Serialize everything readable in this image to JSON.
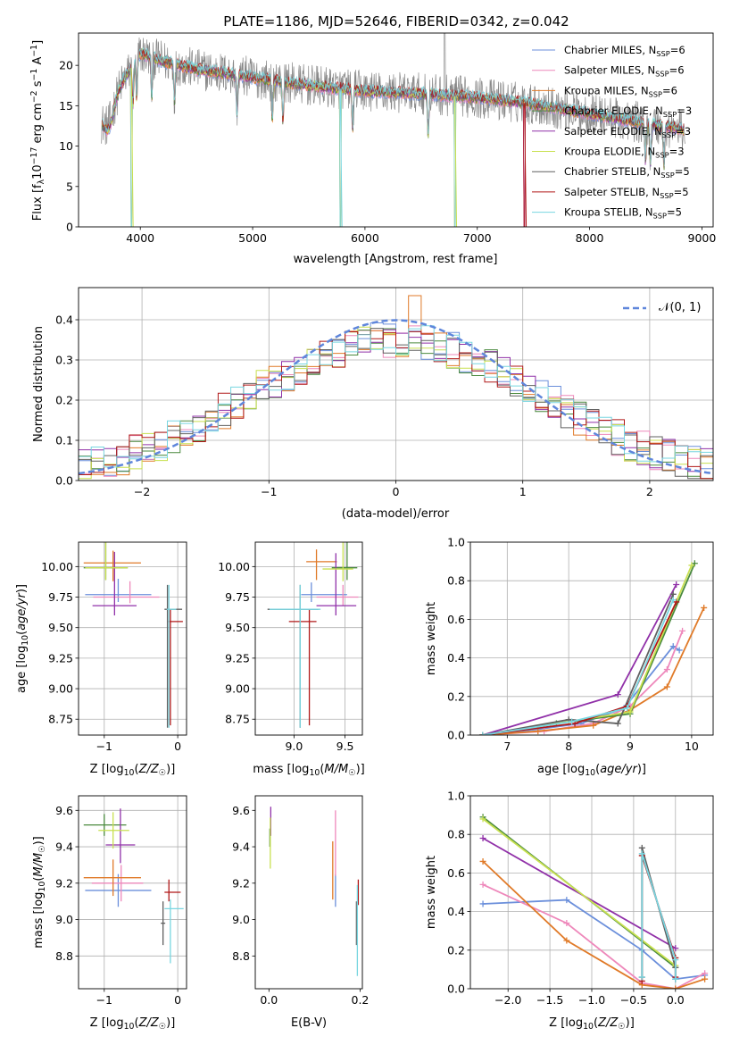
{
  "title": "PLATE=1186, MJD=52646, FIBERID=0342, z=0.042",
  "colors": [
    "#6b8fdb",
    "#ee88bb",
    "#e07a28",
    "#4a8a3e",
    "#9030a8",
    "#c8e050",
    "#606060",
    "#b01818",
    "#78d6e0"
  ],
  "legend_labels": [
    "Chabrier MILES, N_SSP=6",
    "Salpeter MILES, N_SSP=6",
    "Kroupa MILES, N_SSP=6",
    "Chabrier ELODIE, N_SSP=3",
    "Salpeter ELODIE, N_SSP=3",
    "Kroupa ELODIE, N_SSP=3",
    "Chabrier STELIB, N_SSP=5",
    "Salpeter STELIB, N_SSP=5",
    "Kroupa STELIB, N_SSP=5"
  ],
  "chart_data": [
    {
      "id": "spectrum",
      "type": "line",
      "xlabel": "wavelength [Angstrom, rest frame]",
      "ylabel": "Flux [f_λ 10^-17 erg cm^-2 s^-1 A^-1]",
      "xlim": [
        3450,
        9100
      ],
      "ylim": [
        0,
        24
      ],
      "xticks": [
        4000,
        5000,
        6000,
        7000,
        8000,
        9000
      ],
      "yticks": [
        0,
        5,
        10,
        15,
        20
      ],
      "grid": false,
      "legend": "right",
      "continuum": {
        "x": [
          3650,
          3800,
          4000,
          4200,
          4500,
          5000,
          5500,
          6000,
          6500,
          7000,
          7500,
          8000,
          8500,
          8850
        ],
        "y": [
          13.5,
          17,
          21.5,
          20.5,
          19.5,
          18.5,
          17.5,
          16.8,
          16.5,
          16,
          15.2,
          14,
          12.8,
          12
        ]
      },
      "absorption_x": [
        3934,
        3968,
        4102,
        4305,
        4861,
        5175,
        5270,
        5890,
        6563,
        8498,
        8542,
        8662
      ],
      "model_dips_to_zero_x": [
        3920,
        5780,
        6800,
        7420
      ],
      "data_spike_x": 6710
    },
    {
      "id": "residuals",
      "type": "histogram",
      "xlabel": "(data-model)/error",
      "ylabel": "Normed distribution",
      "xlim": [
        -2.5,
        2.5
      ],
      "ylim": [
        0,
        0.48
      ],
      "xticks": [
        -2,
        -1,
        0,
        1,
        2
      ],
      "yticks": [
        0.0,
        0.1,
        0.2,
        0.3,
        0.4
      ],
      "grid": true,
      "bin_width": 0.1,
      "reference_curve": {
        "label": "𝒩(0, 1)",
        "mean": 0,
        "sigma": 1,
        "style": "dashed"
      }
    },
    {
      "id": "age_vs_Z",
      "type": "errorbar",
      "xlabel": "Z [log10(Z/Z☉)]",
      "ylabel": "age  [log10(age/yr)]",
      "xlim": [
        -1.35,
        0.12
      ],
      "ylim": [
        8.62,
        10.2
      ],
      "xticks": [
        -1,
        0
      ],
      "yticks": [
        8.75,
        9.0,
        9.25,
        9.5,
        9.75,
        10.0
      ],
      "grid": true,
      "series": [
        {
          "x": -0.81,
          "y": 9.77,
          "xerr": [
            0.45,
            0.45
          ],
          "yerr": [
            0.06,
            0.13
          ]
        },
        {
          "x": -0.65,
          "y": 9.75,
          "xerr": [
            0.5,
            0.4
          ],
          "yerr": [
            0.05,
            0.13
          ]
        },
        {
          "x": -0.88,
          "y": 10.03,
          "xerr": [
            0.4,
            0.38
          ],
          "yerr": [
            0.15,
            0.1
          ]
        },
        {
          "x": -0.98,
          "y": 9.99,
          "xerr": [
            0.3,
            0.3
          ],
          "yerr": [
            0.1,
            0.3
          ]
        },
        {
          "x": -0.86,
          "y": 9.68,
          "xerr": [
            0.3,
            0.3
          ],
          "yerr": [
            0.08,
            0.44
          ]
        },
        {
          "x": -0.98,
          "y": 9.99,
          "xerr": [
            0.28,
            0.3
          ],
          "yerr": [
            0.1,
            0.3
          ]
        },
        {
          "x": -0.14,
          "y": 9.65,
          "xerr": [
            0.04,
            0.2
          ],
          "yerr": [
            0.97,
            0.2
          ]
        },
        {
          "x": -0.1,
          "y": 9.55,
          "xerr": [
            0.03,
            0.17
          ],
          "yerr": [
            0.85,
            0.1
          ]
        },
        {
          "x": -0.12,
          "y": 9.65,
          "xerr": [
            0.03,
            0.1
          ],
          "yerr": [
            0.97,
            0.2
          ]
        }
      ]
    },
    {
      "id": "age_vs_mass",
      "type": "errorbar",
      "xlabel": "mass [log10(M/M☉)]",
      "ylabel": "",
      "xlim": [
        8.62,
        9.67
      ],
      "ylim": [
        8.62,
        10.2
      ],
      "xticks": [
        9.0,
        9.5
      ],
      "yticks": [
        8.75,
        9.0,
        9.25,
        9.5,
        9.75,
        10.0
      ],
      "grid": true,
      "series": [
        {
          "x": 9.17,
          "y": 9.77,
          "xerr": [
            0.1,
            0.35
          ],
          "yerr": [
            0.06,
            0.1
          ]
        },
        {
          "x": 9.48,
          "y": 9.75,
          "xerr": [
            0.26,
            0.15
          ],
          "yerr": [
            0.07,
            0.1
          ]
        },
        {
          "x": 9.22,
          "y": 10.04,
          "xerr": [
            0.1,
            0.2
          ],
          "yerr": [
            0.15,
            0.1
          ]
        },
        {
          "x": 9.52,
          "y": 9.99,
          "xerr": [
            0.15,
            0.1
          ],
          "yerr": [
            0.1,
            0.3
          ]
        },
        {
          "x": 9.41,
          "y": 9.68,
          "xerr": [
            0.19,
            0.2
          ],
          "yerr": [
            0.08,
            0.43
          ]
        },
        {
          "x": 9.48,
          "y": 9.98,
          "xerr": [
            0.2,
            0.1
          ],
          "yerr": [
            0.1,
            0.3
          ]
        },
        {
          "x": 9.06,
          "y": 9.65,
          "xerr": [
            0.32,
            0.18
          ],
          "yerr": [
            0.97,
            0.2
          ]
        },
        {
          "x": 9.15,
          "y": 9.55,
          "xerr": [
            0.2,
            0.07
          ],
          "yerr": [
            0.85,
            0.1
          ]
        },
        {
          "x": 9.06,
          "y": 9.65,
          "xerr": [
            0.3,
            0.2
          ],
          "yerr": [
            0.97,
            0.2
          ]
        }
      ]
    },
    {
      "id": "weight_vs_age",
      "type": "line",
      "xlabel": "age  [log10(age/yr)]",
      "ylabel": "mass weight",
      "xlim": [
        6.4,
        10.35
      ],
      "ylim": [
        0,
        1
      ],
      "xticks": [
        7,
        8,
        9,
        10
      ],
      "yticks": [
        0.0,
        0.2,
        0.4,
        0.6,
        0.8,
        1.0
      ],
      "grid": true,
      "series": [
        {
          "x": [
            6.6,
            7.5,
            8.2,
            8.9,
            9.7,
            9.8
          ],
          "y": [
            0.0,
            0.03,
            0.06,
            0.14,
            0.46,
            0.44
          ]
        },
        {
          "x": [
            6.6,
            7.6,
            8.4,
            9.0,
            9.6,
            9.85
          ],
          "y": [
            0.0,
            0.02,
            0.06,
            0.15,
            0.34,
            0.54
          ]
        },
        {
          "x": [
            6.6,
            7.5,
            8.4,
            9.0,
            9.6,
            10.2
          ],
          "y": [
            0.0,
            0.02,
            0.05,
            0.13,
            0.25,
            0.66
          ]
        },
        {
          "x": [
            6.6,
            7.8,
            9.0,
            10.05
          ],
          "y": [
            0.0,
            0.06,
            0.11,
            0.89
          ]
        },
        {
          "x": [
            6.6,
            8.8,
            9.75
          ],
          "y": [
            0.0,
            0.21,
            0.78
          ]
        },
        {
          "x": [
            6.6,
            8.0,
            9.0,
            10.0
          ],
          "y": [
            0.0,
            0.07,
            0.12,
            0.88
          ]
        },
        {
          "x": [
            6.6,
            8.0,
            8.8,
            9.7
          ],
          "y": [
            0.0,
            0.08,
            0.06,
            0.73
          ]
        },
        {
          "x": [
            6.6,
            8.1,
            8.95,
            9.75
          ],
          "y": [
            0.0,
            0.06,
            0.15,
            0.69
          ]
        },
        {
          "x": [
            6.6,
            8.05,
            8.95,
            9.7
          ],
          "y": [
            0.0,
            0.07,
            0.14,
            0.7
          ]
        }
      ]
    },
    {
      "id": "mass_vs_Z",
      "type": "errorbar",
      "xlabel": "Z [log10(Z/Z☉)]",
      "ylabel": "mass [log10(M/M☉)]",
      "xlim": [
        -1.35,
        0.12
      ],
      "ylim": [
        8.62,
        9.68
      ],
      "xticks": [
        -1,
        0
      ],
      "yticks": [
        8.8,
        9.0,
        9.2,
        9.4,
        9.6
      ],
      "grid": true,
      "series": [
        {
          "x": -0.81,
          "y": 9.16,
          "xerr": [
            0.45,
            0.45
          ],
          "yerr": [
            0.09,
            0.09
          ]
        },
        {
          "x": -0.77,
          "y": 9.2,
          "xerr": [
            0.4,
            0.3
          ],
          "yerr": [
            0.1,
            0.1
          ]
        },
        {
          "x": -0.88,
          "y": 9.23,
          "xerr": [
            0.4,
            0.38
          ],
          "yerr": [
            0.1,
            0.1
          ]
        },
        {
          "x": -1.0,
          "y": 9.52,
          "xerr": [
            0.28,
            0.3
          ],
          "yerr": [
            0.06,
            0.06
          ]
        },
        {
          "x": -0.78,
          "y": 9.41,
          "xerr": [
            0.2,
            0.2
          ],
          "yerr": [
            0.1,
            0.2
          ]
        },
        {
          "x": -0.88,
          "y": 9.49,
          "xerr": [
            0.2,
            0.22
          ],
          "yerr": [
            0.1,
            0.1
          ]
        },
        {
          "x": -0.2,
          "y": 8.98,
          "xerr": [
            0.03,
            0.03
          ],
          "yerr": [
            0.12,
            0.12
          ]
        },
        {
          "x": -0.12,
          "y": 9.15,
          "xerr": [
            0.06,
            0.16
          ],
          "yerr": [
            0.05,
            0.07
          ]
        },
        {
          "x": -0.1,
          "y": 9.06,
          "xerr": [
            0.08,
            0.18
          ],
          "yerr": [
            0.3,
            0.05
          ]
        }
      ]
    },
    {
      "id": "mass_vs_ebv",
      "type": "errorbar",
      "xlabel": "E(B-V)",
      "ylabel": "",
      "xlim": [
        -0.03,
        0.205
      ],
      "ylim": [
        8.62,
        9.68
      ],
      "xticks": [
        0.0,
        0.2
      ],
      "yticks": [
        8.8,
        9.0,
        9.2,
        9.4,
        9.6
      ],
      "grid": false,
      "series": [
        {
          "x": 0.146,
          "y": 9.16,
          "yerr": [
            0.09,
            0.09
          ]
        },
        {
          "x": 0.146,
          "y": 9.42,
          "yerr": [
            0.18,
            0.18
          ]
        },
        {
          "x": 0.14,
          "y": 9.27,
          "yerr": [
            0.16,
            0.16
          ]
        },
        {
          "x": 0.002,
          "y": 9.45,
          "yerr": [
            0.05,
            0.05
          ]
        },
        {
          "x": 0.004,
          "y": 9.54,
          "yerr": [
            0.08,
            0.08
          ]
        },
        {
          "x": 0.003,
          "y": 9.42,
          "yerr": [
            0.14,
            0.14
          ]
        },
        {
          "x": 0.192,
          "y": 8.98,
          "yerr": [
            0.12,
            0.12
          ]
        },
        {
          "x": 0.196,
          "y": 9.15,
          "yerr": [
            0.07,
            0.07
          ]
        },
        {
          "x": 0.194,
          "y": 8.94,
          "yerr": [
            0.25,
            0.25
          ]
        }
      ]
    },
    {
      "id": "weight_vs_Z",
      "type": "line",
      "xlabel": "Z [log10(Z/Z☉)]",
      "ylabel": "mass weight",
      "xlim": [
        -2.45,
        0.45
      ],
      "ylim": [
        0,
        1
      ],
      "xticks": [
        -2.0,
        -1.5,
        -1.0,
        -0.5,
        0.0
      ],
      "yticks": [
        0.0,
        0.2,
        0.4,
        0.6,
        0.8,
        1.0
      ],
      "grid": true,
      "series": [
        {
          "x": [
            -2.3,
            -1.3,
            -0.4,
            0.0,
            0.35
          ],
          "y": [
            0.44,
            0.46,
            0.2,
            0.05,
            0.07
          ]
        },
        {
          "x": [
            -2.3,
            -1.3,
            -0.4,
            0.0,
            0.35
          ],
          "y": [
            0.54,
            0.34,
            0.03,
            0.0,
            0.08
          ]
        },
        {
          "x": [
            -2.3,
            -1.3,
            -0.4,
            0.0,
            0.35
          ],
          "y": [
            0.66,
            0.25,
            0.02,
            0.0,
            0.05
          ]
        },
        {
          "x": [
            -2.3,
            0.0
          ],
          "y": [
            0.89,
            0.11
          ]
        },
        {
          "x": [
            -2.3,
            0.0
          ],
          "y": [
            0.78,
            0.21
          ]
        },
        {
          "x": [
            -2.3,
            0.0
          ],
          "y": [
            0.88,
            0.12
          ]
        },
        {
          "x": [
            -0.4,
            -0.4,
            0.0,
            0.0
          ],
          "y": [
            0.06,
            0.73,
            0.11,
            0.05
          ]
        },
        {
          "x": [
            -0.4,
            -0.4,
            0.0,
            0.0
          ],
          "y": [
            0.04,
            0.69,
            0.16,
            0.06
          ]
        },
        {
          "x": [
            -0.4,
            -0.4,
            0.0,
            0.0
          ],
          "y": [
            0.06,
            0.7,
            0.15,
            0.05
          ]
        }
      ]
    }
  ]
}
